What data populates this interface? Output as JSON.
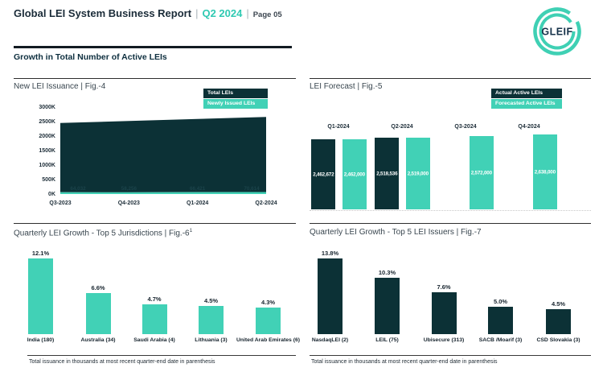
{
  "page": {
    "title": "Global LEI System Business Report",
    "separator": "|",
    "period": "Q2 2024",
    "page_label": "Page 05",
    "section_title": "Growth in Total Number of Active LEIs",
    "logo_text": "GLEIF",
    "footnote_left": "Total issuance in thousands at most recent quarter-end date in parenthesis",
    "footnote_right": "Total issuance in thousands at most recent quarter-end date in parenthesis"
  },
  "colors": {
    "teal": "#41d1b6",
    "dark": "#0c3136",
    "accent_text": "#2fc9b2"
  },
  "chart_data": [
    {
      "id": "fig4",
      "type": "area",
      "title": "New LEI Issuance | Fig.-4",
      "legend": [
        "Total LEIs",
        "Newly Issued LEIs"
      ],
      "legend_position": "top-right",
      "categories": [
        "Q3-2023",
        "Q4-2023",
        "Q1-2024",
        "Q2-2024"
      ],
      "series": [
        {
          "name": "Total LEIs",
          "color": "#0c3136",
          "values": [
            2450000,
            2520000,
            2590000,
            2660000
          ]
        },
        {
          "name": "Newly Issued LEIs",
          "color": "#41d1b6",
          "values": [
            64032,
            58256,
            66421,
            70614
          ],
          "labels": [
            "64,032",
            "58,256",
            "66,421",
            "70,614"
          ]
        }
      ],
      "ylabel_ticks": [
        "0K",
        "500K",
        "1000K",
        "1500K",
        "2000K",
        "2500K",
        "3000K"
      ],
      "ylim": [
        0,
        3000000
      ],
      "grid": false
    },
    {
      "id": "fig5",
      "type": "bar",
      "title": "LEI Forecast | Fig.-5",
      "legend": [
        "Actual Active LEIs",
        "Forecasted Active LEIs"
      ],
      "legend_position": "top-right",
      "categories": [
        "Q1-2024",
        "Q2-2024",
        "Q3-2024",
        "Q4-2024"
      ],
      "series": [
        {
          "name": "Actual Active LEIs",
          "color": "#0c3136",
          "values": [
            2462672,
            2518536,
            null,
            null
          ],
          "labels": [
            "2,462,672",
            "2,518,536",
            "",
            ""
          ]
        },
        {
          "name": "Forecasted Active LEIs",
          "color": "#41d1b6",
          "values": [
            2462000,
            2519000,
            2572000,
            2638000
          ],
          "labels": [
            "2,462,000",
            "2,519,000",
            "2,572,000",
            "2,638,000"
          ]
        }
      ]
    },
    {
      "id": "fig6",
      "type": "bar",
      "title": "Quarterly LEI Growth - Top 5 Jurisdictions | Fig.-6",
      "title_sup": "1",
      "bar_color": "#41d1b6",
      "categories": [
        "India (180)",
        "Australia (34)",
        "Saudi Arabia (4)",
        "Lithuania (3)",
        "United Arab Emirates (6)"
      ],
      "values": [
        12.1,
        6.6,
        4.7,
        4.5,
        4.3
      ],
      "labels": [
        "12.1%",
        "6.6%",
        "4.7%",
        "4.5%",
        "4.3%"
      ]
    },
    {
      "id": "fig7",
      "type": "bar",
      "title": "Quarterly LEI Growth - Top 5 LEI Issuers | Fig.-7",
      "bar_color": "#0c3136",
      "categories": [
        "NasdaqLEI (2)",
        "LEIL (75)",
        "Ubisecure (313)",
        "SACB /Moarif (3)",
        "CSD Slovakia (3)"
      ],
      "values": [
        13.8,
        10.3,
        7.6,
        5.0,
        4.5
      ],
      "labels": [
        "13.8%",
        "10.3%",
        "7.6%",
        "5.0%",
        "4.5%"
      ]
    }
  ]
}
